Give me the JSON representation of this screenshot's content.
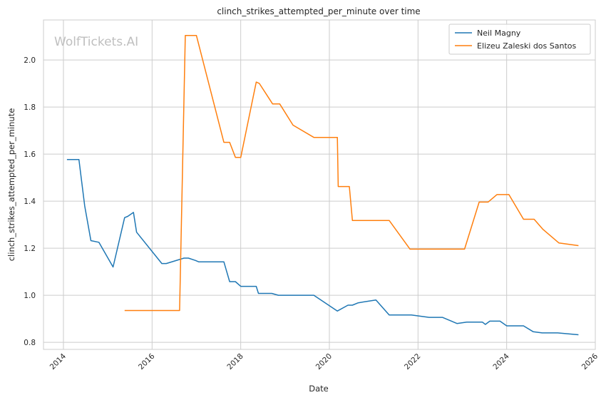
{
  "chart_data": {
    "type": "line",
    "title": "clinch_strikes_attempted_per_minute over time",
    "xlabel": "Date",
    "ylabel": "clinch_strikes_attempted_per_minute",
    "watermark": "WolfTickets.AI",
    "xlim": [
      2013.55,
      2026.0
    ],
    "ylim": [
      0.77,
      2.17
    ],
    "x_ticks": [
      2014,
      2016,
      2018,
      2020,
      2022,
      2024,
      2026
    ],
    "x_tick_labels": [
      "2014",
      "2016",
      "2018",
      "2020",
      "2022",
      "2024",
      "2026"
    ],
    "y_ticks": [
      0.8,
      1.0,
      1.2,
      1.4,
      1.6,
      1.8,
      2.0
    ],
    "y_tick_labels": [
      "0.8",
      "1.0",
      "1.2",
      "1.4",
      "1.6",
      "1.8",
      "2.0"
    ],
    "grid": true,
    "legend_position": "top-right",
    "series": [
      {
        "name": "Neil Magny",
        "color": "#1f77b4",
        "points": [
          [
            2014.08,
            1.577
          ],
          [
            2014.35,
            1.577
          ],
          [
            2014.48,
            1.38
          ],
          [
            2014.62,
            1.232
          ],
          [
            2014.8,
            1.225
          ],
          [
            2015.12,
            1.12
          ],
          [
            2015.38,
            1.33
          ],
          [
            2015.45,
            1.335
          ],
          [
            2015.58,
            1.352
          ],
          [
            2015.65,
            1.268
          ],
          [
            2016.22,
            1.135
          ],
          [
            2016.32,
            1.135
          ],
          [
            2016.72,
            1.158
          ],
          [
            2016.82,
            1.158
          ],
          [
            2016.98,
            1.148
          ],
          [
            2017.05,
            1.142
          ],
          [
            2017.62,
            1.142
          ],
          [
            2017.75,
            1.058
          ],
          [
            2017.88,
            1.058
          ],
          [
            2018.0,
            1.038
          ],
          [
            2018.35,
            1.038
          ],
          [
            2018.4,
            1.008
          ],
          [
            2018.7,
            1.008
          ],
          [
            2018.85,
            1.0
          ],
          [
            2019.65,
            1.0
          ],
          [
            2020.18,
            0.933
          ],
          [
            2020.42,
            0.958
          ],
          [
            2020.52,
            0.958
          ],
          [
            2020.65,
            0.968
          ],
          [
            2021.05,
            0.98
          ],
          [
            2021.35,
            0.916
          ],
          [
            2021.85,
            0.916
          ],
          [
            2022.25,
            0.906
          ],
          [
            2022.55,
            0.906
          ],
          [
            2022.88,
            0.88
          ],
          [
            2023.1,
            0.886
          ],
          [
            2023.45,
            0.886
          ],
          [
            2023.52,
            0.876
          ],
          [
            2023.62,
            0.89
          ],
          [
            2023.85,
            0.89
          ],
          [
            2024.0,
            0.87
          ],
          [
            2024.38,
            0.87
          ],
          [
            2024.6,
            0.845
          ],
          [
            2024.8,
            0.84
          ],
          [
            2025.15,
            0.84
          ],
          [
            2025.62,
            0.832
          ]
        ]
      },
      {
        "name": "Elizeu Zaleski dos Santos",
        "color": "#ff7f0e",
        "points": [
          [
            2015.38,
            0.935
          ],
          [
            2016.62,
            0.935
          ],
          [
            2016.75,
            2.104
          ],
          [
            2017.0,
            2.104
          ],
          [
            2017.62,
            1.65
          ],
          [
            2017.75,
            1.65
          ],
          [
            2017.88,
            1.586
          ],
          [
            2018.0,
            1.586
          ],
          [
            2018.35,
            1.906
          ],
          [
            2018.42,
            1.9
          ],
          [
            2018.72,
            1.813
          ],
          [
            2018.88,
            1.813
          ],
          [
            2019.18,
            1.723
          ],
          [
            2019.65,
            1.671
          ],
          [
            2020.18,
            1.671
          ],
          [
            2020.2,
            1.462
          ],
          [
            2020.45,
            1.462
          ],
          [
            2020.52,
            1.318
          ],
          [
            2021.35,
            1.318
          ],
          [
            2021.82,
            1.196
          ],
          [
            2023.05,
            1.196
          ],
          [
            2023.38,
            1.396
          ],
          [
            2023.58,
            1.396
          ],
          [
            2023.78,
            1.428
          ],
          [
            2024.05,
            1.428
          ],
          [
            2024.38,
            1.323
          ],
          [
            2024.62,
            1.323
          ],
          [
            2024.82,
            1.28
          ],
          [
            2025.18,
            1.222
          ],
          [
            2025.62,
            1.211
          ]
        ]
      }
    ]
  }
}
